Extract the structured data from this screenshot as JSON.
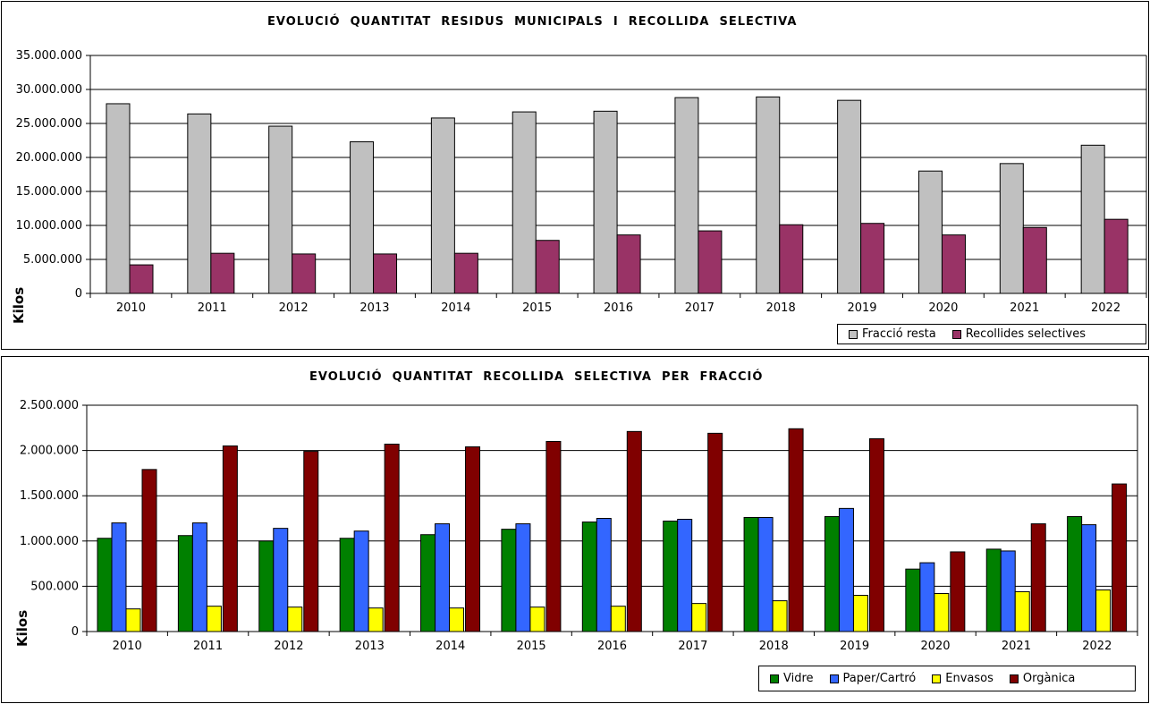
{
  "chart_data": [
    {
      "type": "bar",
      "title": "EVOLUCIÓ  QUANTITAT  RESIDUS  MUNICIPALS  I  RECOLLIDA  SELECTIVA",
      "xlabel": "",
      "ylabel": "Kilos",
      "ylim": [
        0,
        35000000
      ],
      "yticks": [
        "0",
        "5.000.000",
        "10.000.000",
        "15.000.000",
        "20.000.000",
        "25.000.000",
        "30.000.000",
        "35.000.000"
      ],
      "categories": [
        "2010",
        "2011",
        "2012",
        "2013",
        "2014",
        "2015",
        "2016",
        "2017",
        "2018",
        "2019",
        "2020",
        "2021",
        "2022"
      ],
      "grid": true,
      "legend_position": "bottom-right",
      "series": [
        {
          "name": "Fracció resta",
          "color": "#c0c0c0",
          "values": [
            27900000,
            26400000,
            24600000,
            22300000,
            25800000,
            26700000,
            26800000,
            28800000,
            28900000,
            28400000,
            18000000,
            19100000,
            21800000
          ]
        },
        {
          "name": "Recollides selectives",
          "color": "#993366",
          "values": [
            4200000,
            5900000,
            5800000,
            5800000,
            5900000,
            7800000,
            8600000,
            9200000,
            10100000,
            10300000,
            8600000,
            9700000,
            10900000
          ]
        }
      ]
    },
    {
      "type": "bar",
      "title": "EVOLUCIÓ  QUANTITAT  RECOLLIDA  SELECTIVA  PER  FRACCIÓ",
      "xlabel": "",
      "ylabel": "Kilos",
      "ylim": [
        0,
        2500000
      ],
      "yticks": [
        "0",
        "500.000",
        "1.000.000",
        "1.500.000",
        "2.000.000",
        "2.500.000"
      ],
      "categories": [
        "2010",
        "2011",
        "2012",
        "2013",
        "2014",
        "2015",
        "2016",
        "2017",
        "2018",
        "2019",
        "2020",
        "2021",
        "2022"
      ],
      "grid": true,
      "legend_position": "bottom-right",
      "series": [
        {
          "name": "Vidre",
          "color": "#008000",
          "values": [
            1030000,
            1060000,
            1000000,
            1030000,
            1070000,
            1130000,
            1210000,
            1220000,
            1260000,
            1270000,
            690000,
            910000,
            1270000
          ]
        },
        {
          "name": "Paper/Cartró",
          "color": "#3366ff",
          "values": [
            1200000,
            1200000,
            1140000,
            1110000,
            1190000,
            1190000,
            1250000,
            1240000,
            1260000,
            1360000,
            760000,
            890000,
            1180000
          ]
        },
        {
          "name": "Envasos",
          "color": "#ffff00",
          "values": [
            250000,
            280000,
            270000,
            260000,
            260000,
            270000,
            280000,
            310000,
            340000,
            400000,
            420000,
            440000,
            460000
          ]
        },
        {
          "name": "Orgànica",
          "color": "#800000",
          "values": [
            1790000,
            2050000,
            1990000,
            2070000,
            2040000,
            2100000,
            2210000,
            2190000,
            2240000,
            2130000,
            880000,
            1190000,
            1630000
          ]
        }
      ]
    }
  ]
}
